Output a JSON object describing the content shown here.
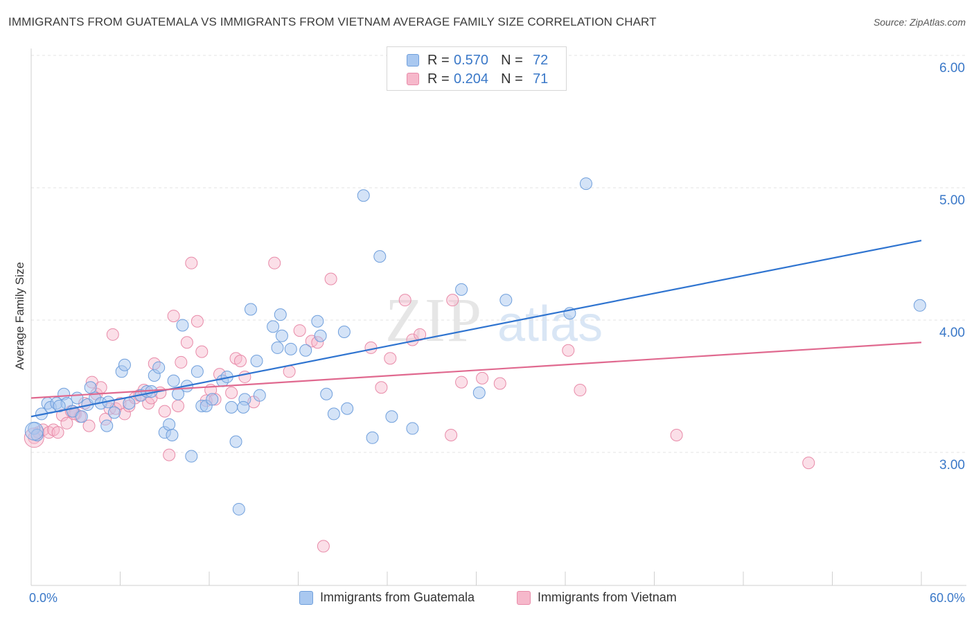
{
  "title": "IMMIGRANTS FROM GUATEMALA VS IMMIGRANTS FROM VIETNAM AVERAGE FAMILY SIZE CORRELATION CHART",
  "source": "Source: ZipAtlas.com",
  "watermark": {
    "zip": "ZIP",
    "atlas": "atlas"
  },
  "legend": {
    "rows": [
      {
        "r_label": "R =",
        "r_value": "0.570",
        "n_label": "N =",
        "n_value": "72"
      },
      {
        "r_label": "R =",
        "r_value": "0.204",
        "n_label": "N =",
        "n_value": "71"
      }
    ]
  },
  "bottom_legend": [
    "Immigrants from Guatemala",
    "Immigrants from Vietnam"
  ],
  "colors": {
    "series1_fill": "#a9c8f0",
    "series1_stroke": "#6f9fdc",
    "series1_line": "#2f74d0",
    "series2_fill": "#f6b8cb",
    "series2_stroke": "#e88aa8",
    "series2_line": "#e0698f",
    "axis_tick": "#3a78c8",
    "grid": "#e3e3e3"
  },
  "chart_data": {
    "type": "scatter",
    "title": "IMMIGRANTS FROM GUATEMALA VS IMMIGRANTS FROM VIETNAM AVERAGE FAMILY SIZE CORRELATION CHART",
    "xlabel": "",
    "ylabel": "Average Family Size",
    "xlim": [
      0,
      60
    ],
    "ylim": [
      2.0,
      6.1
    ],
    "x_tick_labels": [
      "0.0%",
      "60.0%"
    ],
    "y_ticks": [
      3.0,
      4.0,
      5.0,
      6.0
    ],
    "y_tick_labels": [
      "3.00",
      "4.00",
      "5.00",
      "6.00"
    ],
    "grid": true,
    "legend_position": "top-center",
    "series": [
      {
        "name": "Immigrants from Guatemala",
        "color": "#a9c8f0",
        "trend": {
          "x": [
            0,
            60
          ],
          "y": [
            3.36,
            4.69
          ]
        },
        "points": [
          [
            0.2,
            3.27
          ],
          [
            0.4,
            3.22
          ],
          [
            0.7,
            3.38
          ],
          [
            1.1,
            3.46
          ],
          [
            1.3,
            3.43
          ],
          [
            1.7,
            3.46
          ],
          [
            2.2,
            3.53
          ],
          [
            2.4,
            3.46
          ],
          [
            2.8,
            3.4
          ],
          [
            3.1,
            3.5
          ],
          [
            3.4,
            3.36
          ],
          [
            3.8,
            3.45
          ],
          [
            4.0,
            3.58
          ],
          [
            4.3,
            3.5
          ],
          [
            4.7,
            3.46
          ],
          [
            5.1,
            3.29
          ],
          [
            5.6,
            3.39
          ],
          [
            6.1,
            3.7
          ],
          [
            6.3,
            3.75
          ],
          [
            6.6,
            3.46
          ],
          [
            7.4,
            3.52
          ],
          [
            7.8,
            3.55
          ],
          [
            8.1,
            3.55
          ],
          [
            8.3,
            3.67
          ],
          [
            8.6,
            3.73
          ],
          [
            9.0,
            3.24
          ],
          [
            9.3,
            3.3
          ],
          [
            9.6,
            3.63
          ],
          [
            9.9,
            3.53
          ],
          [
            10.2,
            4.05
          ],
          [
            10.5,
            3.59
          ],
          [
            10.8,
            3.06
          ],
          [
            11.2,
            3.7
          ],
          [
            11.5,
            3.44
          ],
          [
            11.8,
            3.44
          ],
          [
            12.2,
            3.49
          ],
          [
            12.9,
            3.63
          ],
          [
            13.2,
            3.66
          ],
          [
            13.5,
            3.43
          ],
          [
            13.8,
            3.17
          ],
          [
            14.0,
            2.66
          ],
          [
            14.4,
            3.49
          ],
          [
            14.8,
            4.17
          ],
          [
            15.2,
            3.78
          ],
          [
            15.4,
            3.52
          ],
          [
            16.3,
            4.04
          ],
          [
            16.6,
            3.88
          ],
          [
            16.9,
            3.97
          ],
          [
            16.8,
            4.13
          ],
          [
            17.5,
            3.87
          ],
          [
            18.5,
            3.86
          ],
          [
            19.3,
            4.08
          ],
          [
            19.5,
            3.97
          ],
          [
            19.9,
            3.53
          ],
          [
            20.4,
            3.38
          ],
          [
            21.1,
            4.0
          ],
          [
            21.3,
            3.42
          ],
          [
            22.4,
            5.03
          ],
          [
            23.0,
            3.2
          ],
          [
            23.5,
            4.57
          ],
          [
            24.3,
            3.36
          ],
          [
            25.7,
            3.27
          ],
          [
            29.0,
            4.32
          ],
          [
            30.2,
            3.54
          ],
          [
            32.0,
            4.24
          ],
          [
            36.3,
            4.14
          ],
          [
            37.4,
            5.12
          ],
          [
            59.9,
            4.2
          ],
          [
            14.3,
            3.43
          ],
          [
            9.5,
            3.22
          ],
          [
            5.2,
            3.47
          ],
          [
            1.9,
            3.44
          ]
        ]
      },
      {
        "name": "Immigrants from Vietnam",
        "color": "#f6b8cb",
        "trend": {
          "x": [
            0,
            60
          ],
          "y": [
            3.5,
            3.92
          ]
        },
        "points": [
          [
            0.2,
            3.2
          ],
          [
            0.5,
            3.24
          ],
          [
            0.8,
            3.26
          ],
          [
            1.2,
            3.24
          ],
          [
            1.5,
            3.26
          ],
          [
            1.8,
            3.24
          ],
          [
            2.1,
            3.37
          ],
          [
            2.4,
            3.31
          ],
          [
            2.7,
            3.4
          ],
          [
            3.0,
            3.38
          ],
          [
            3.3,
            3.36
          ],
          [
            3.6,
            3.46
          ],
          [
            3.9,
            3.29
          ],
          [
            4.1,
            3.62
          ],
          [
            4.4,
            3.53
          ],
          [
            4.7,
            3.58
          ],
          [
            5.0,
            3.34
          ],
          [
            5.3,
            3.42
          ],
          [
            5.5,
            3.98
          ],
          [
            5.7,
            3.42
          ],
          [
            6.0,
            3.46
          ],
          [
            6.3,
            3.38
          ],
          [
            6.6,
            3.44
          ],
          [
            7.0,
            3.5
          ],
          [
            7.3,
            3.52
          ],
          [
            7.6,
            3.56
          ],
          [
            7.9,
            3.46
          ],
          [
            8.1,
            3.5
          ],
          [
            8.3,
            3.76
          ],
          [
            8.7,
            3.54
          ],
          [
            9.0,
            3.4
          ],
          [
            9.3,
            3.07
          ],
          [
            9.6,
            4.12
          ],
          [
            9.9,
            3.44
          ],
          [
            10.1,
            3.77
          ],
          [
            10.5,
            3.92
          ],
          [
            10.8,
            4.52
          ],
          [
            11.2,
            4.08
          ],
          [
            11.5,
            3.85
          ],
          [
            11.8,
            3.48
          ],
          [
            12.1,
            3.56
          ],
          [
            12.4,
            3.49
          ],
          [
            12.7,
            3.68
          ],
          [
            13.5,
            3.54
          ],
          [
            13.8,
            3.8
          ],
          [
            14.1,
            3.78
          ],
          [
            14.4,
            3.66
          ],
          [
            15.0,
            3.47
          ],
          [
            16.4,
            4.52
          ],
          [
            17.4,
            3.7
          ],
          [
            18.1,
            4.01
          ],
          [
            18.9,
            3.93
          ],
          [
            19.3,
            3.92
          ],
          [
            19.7,
            2.38
          ],
          [
            20.2,
            4.4
          ],
          [
            22.9,
            3.88
          ],
          [
            23.6,
            3.58
          ],
          [
            24.2,
            3.8
          ],
          [
            25.2,
            4.24
          ],
          [
            25.7,
            3.94
          ],
          [
            26.2,
            3.98
          ],
          [
            28.3,
            3.22
          ],
          [
            28.4,
            4.24
          ],
          [
            29.0,
            3.62
          ],
          [
            30.4,
            3.65
          ],
          [
            31.6,
            3.61
          ],
          [
            36.2,
            3.86
          ],
          [
            37.0,
            3.56
          ],
          [
            43.5,
            3.22
          ],
          [
            52.4,
            3.01
          ],
          [
            2.9,
            3.38
          ]
        ]
      }
    ]
  }
}
